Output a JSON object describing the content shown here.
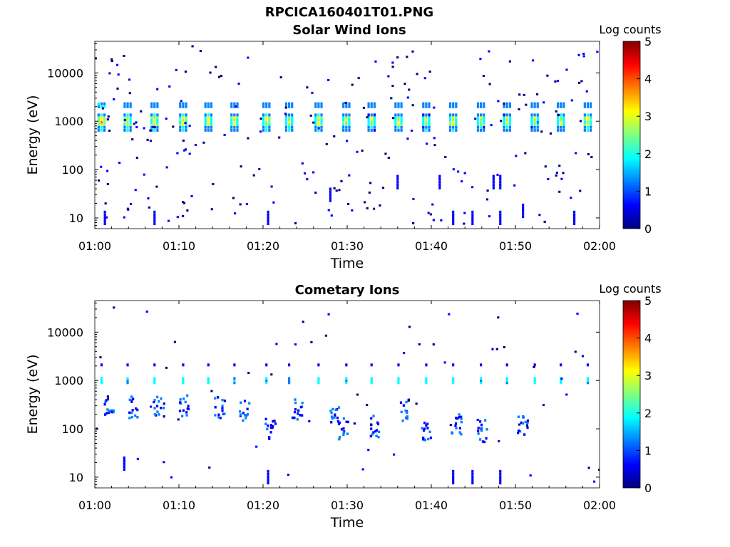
{
  "figure": {
    "title": "RPCICA160401T01.PNG",
    "subtitle": "Solar Wind Ions"
  },
  "colormap": [
    "#00007f",
    "#0000ff",
    "#007fff",
    "#00ffff",
    "#7fff7f",
    "#ffff00",
    "#ff7f00",
    "#ff0000",
    "#7f0000"
  ],
  "chart_data": [
    {
      "type": "heatmap",
      "title": "",
      "xlabel": "Time",
      "ylabel": "Energy (eV)",
      "x_ticks": [
        "01:00",
        "01:10",
        "01:20",
        "01:30",
        "01:40",
        "01:50",
        "02:00"
      ],
      "y_ticks": [
        "10",
        "100",
        "1000",
        "10000"
      ],
      "x_range_minutes": [
        0,
        60
      ],
      "y_scale": "log",
      "y_range_eV": [
        6,
        45000
      ],
      "colorbar": {
        "label": "Log counts",
        "ticks": [
          "0",
          "1",
          "2",
          "3",
          "4",
          "5"
        ],
        "range": [
          0,
          5
        ]
      },
      "sweeps": [
        {
          "t": 0.8,
          "peak": 3.4
        },
        {
          "t": 3.9,
          "peak": 3.0
        },
        {
          "t": 7.1,
          "peak": 2.9
        },
        {
          "t": 10.5,
          "peak": 3.2
        },
        {
          "t": 13.5,
          "peak": 2.9
        },
        {
          "t": 16.6,
          "peak": 2.9
        },
        {
          "t": 20.4,
          "peak": 3.0
        },
        {
          "t": 23.1,
          "peak": 2.7
        },
        {
          "t": 26.6,
          "peak": 3.1
        },
        {
          "t": 29.9,
          "peak": 2.8
        },
        {
          "t": 32.9,
          "peak": 2.6
        },
        {
          "t": 36.1,
          "peak": 3.1
        },
        {
          "t": 39.4,
          "peak": 2.7
        },
        {
          "t": 42.6,
          "peak": 2.9
        },
        {
          "t": 45.9,
          "peak": 2.8
        },
        {
          "t": 49.0,
          "peak": 2.7
        },
        {
          "t": 52.3,
          "peak": 2.6
        },
        {
          "t": 55.4,
          "peak": 2.7
        },
        {
          "t": 58.6,
          "peak": 3.0
        }
      ],
      "bursts": [
        {
          "t": 1.2,
          "e": 10
        },
        {
          "t": 7.1,
          "e": 10
        },
        {
          "t": 20.6,
          "e": 10
        },
        {
          "t": 42.6,
          "e": 10
        },
        {
          "t": 44.9,
          "e": 10
        },
        {
          "t": 48.2,
          "e": 10
        },
        {
          "t": 57.0,
          "e": 10
        },
        {
          "t": 50.9,
          "e": 14
        },
        {
          "t": 41.0,
          "e": 55
        },
        {
          "t": 47.4,
          "e": 55
        },
        {
          "t": 48.2,
          "e": 55
        },
        {
          "t": 36.0,
          "e": 55
        },
        {
          "t": 28.0,
          "e": 30
        }
      ],
      "scatter_density": 230
    },
    {
      "type": "heatmap",
      "title": "Cometary Ions",
      "xlabel": "Time",
      "ylabel": "Energy (eV)",
      "x_ticks": [
        "01:00",
        "01:10",
        "01:20",
        "01:30",
        "01:40",
        "01:50",
        "02:00"
      ],
      "y_ticks": [
        "10",
        "100",
        "1000",
        "10000"
      ],
      "x_range_minutes": [
        0,
        60
      ],
      "y_scale": "log",
      "y_range_eV": [
        6,
        45000
      ],
      "colorbar": {
        "label": "Log counts",
        "ticks": [
          "0",
          "1",
          "2",
          "3",
          "4",
          "5"
        ],
        "range": [
          0,
          5
        ]
      },
      "sweeps": [
        {
          "t": 0.8,
          "peak": 1.9
        },
        {
          "t": 3.9,
          "peak": 1.7
        },
        {
          "t": 7.1,
          "peak": 1.7
        },
        {
          "t": 10.5,
          "peak": 1.8
        },
        {
          "t": 13.5,
          "peak": 1.7
        },
        {
          "t": 16.6,
          "peak": 1.6
        },
        {
          "t": 20.4,
          "peak": 1.8
        },
        {
          "t": 23.1,
          "peak": 1.4
        },
        {
          "t": 26.6,
          "peak": 1.9
        },
        {
          "t": 29.9,
          "peak": 1.7
        },
        {
          "t": 32.9,
          "peak": 1.5
        },
        {
          "t": 36.1,
          "peak": 1.7
        },
        {
          "t": 39.4,
          "peak": 1.8
        },
        {
          "t": 42.6,
          "peak": 1.7
        },
        {
          "t": 45.9,
          "peak": 1.6
        },
        {
          "t": 49.0,
          "peak": 1.6
        },
        {
          "t": 52.3,
          "peak": 1.8
        },
        {
          "t": 55.4,
          "peak": 1.7
        },
        {
          "t": 58.6,
          "peak": 1.7
        }
      ],
      "bursts": [
        {
          "t": 20.6,
          "e": 10
        },
        {
          "t": 42.6,
          "e": 10
        },
        {
          "t": 44.9,
          "e": 10
        },
        {
          "t": 48.2,
          "e": 10
        },
        {
          "t": 3.5,
          "e": 19
        }
      ],
      "clusters": [
        {
          "t": 1.7,
          "e": 280
        },
        {
          "t": 4.6,
          "e": 280
        },
        {
          "t": 7.7,
          "e": 280
        },
        {
          "t": 10.6,
          "e": 300
        },
        {
          "t": 14.9,
          "e": 280
        },
        {
          "t": 17.8,
          "e": 240
        },
        {
          "t": 20.9,
          "e": 100
        },
        {
          "t": 24.1,
          "e": 260
        },
        {
          "t": 28.5,
          "e": 180
        },
        {
          "t": 29.6,
          "e": 100
        },
        {
          "t": 33.2,
          "e": 110
        },
        {
          "t": 36.9,
          "e": 240
        },
        {
          "t": 39.5,
          "e": 90
        },
        {
          "t": 43.0,
          "e": 120
        },
        {
          "t": 46.1,
          "e": 90
        },
        {
          "t": 50.9,
          "e": 110
        }
      ],
      "scatter_density": 60
    }
  ]
}
